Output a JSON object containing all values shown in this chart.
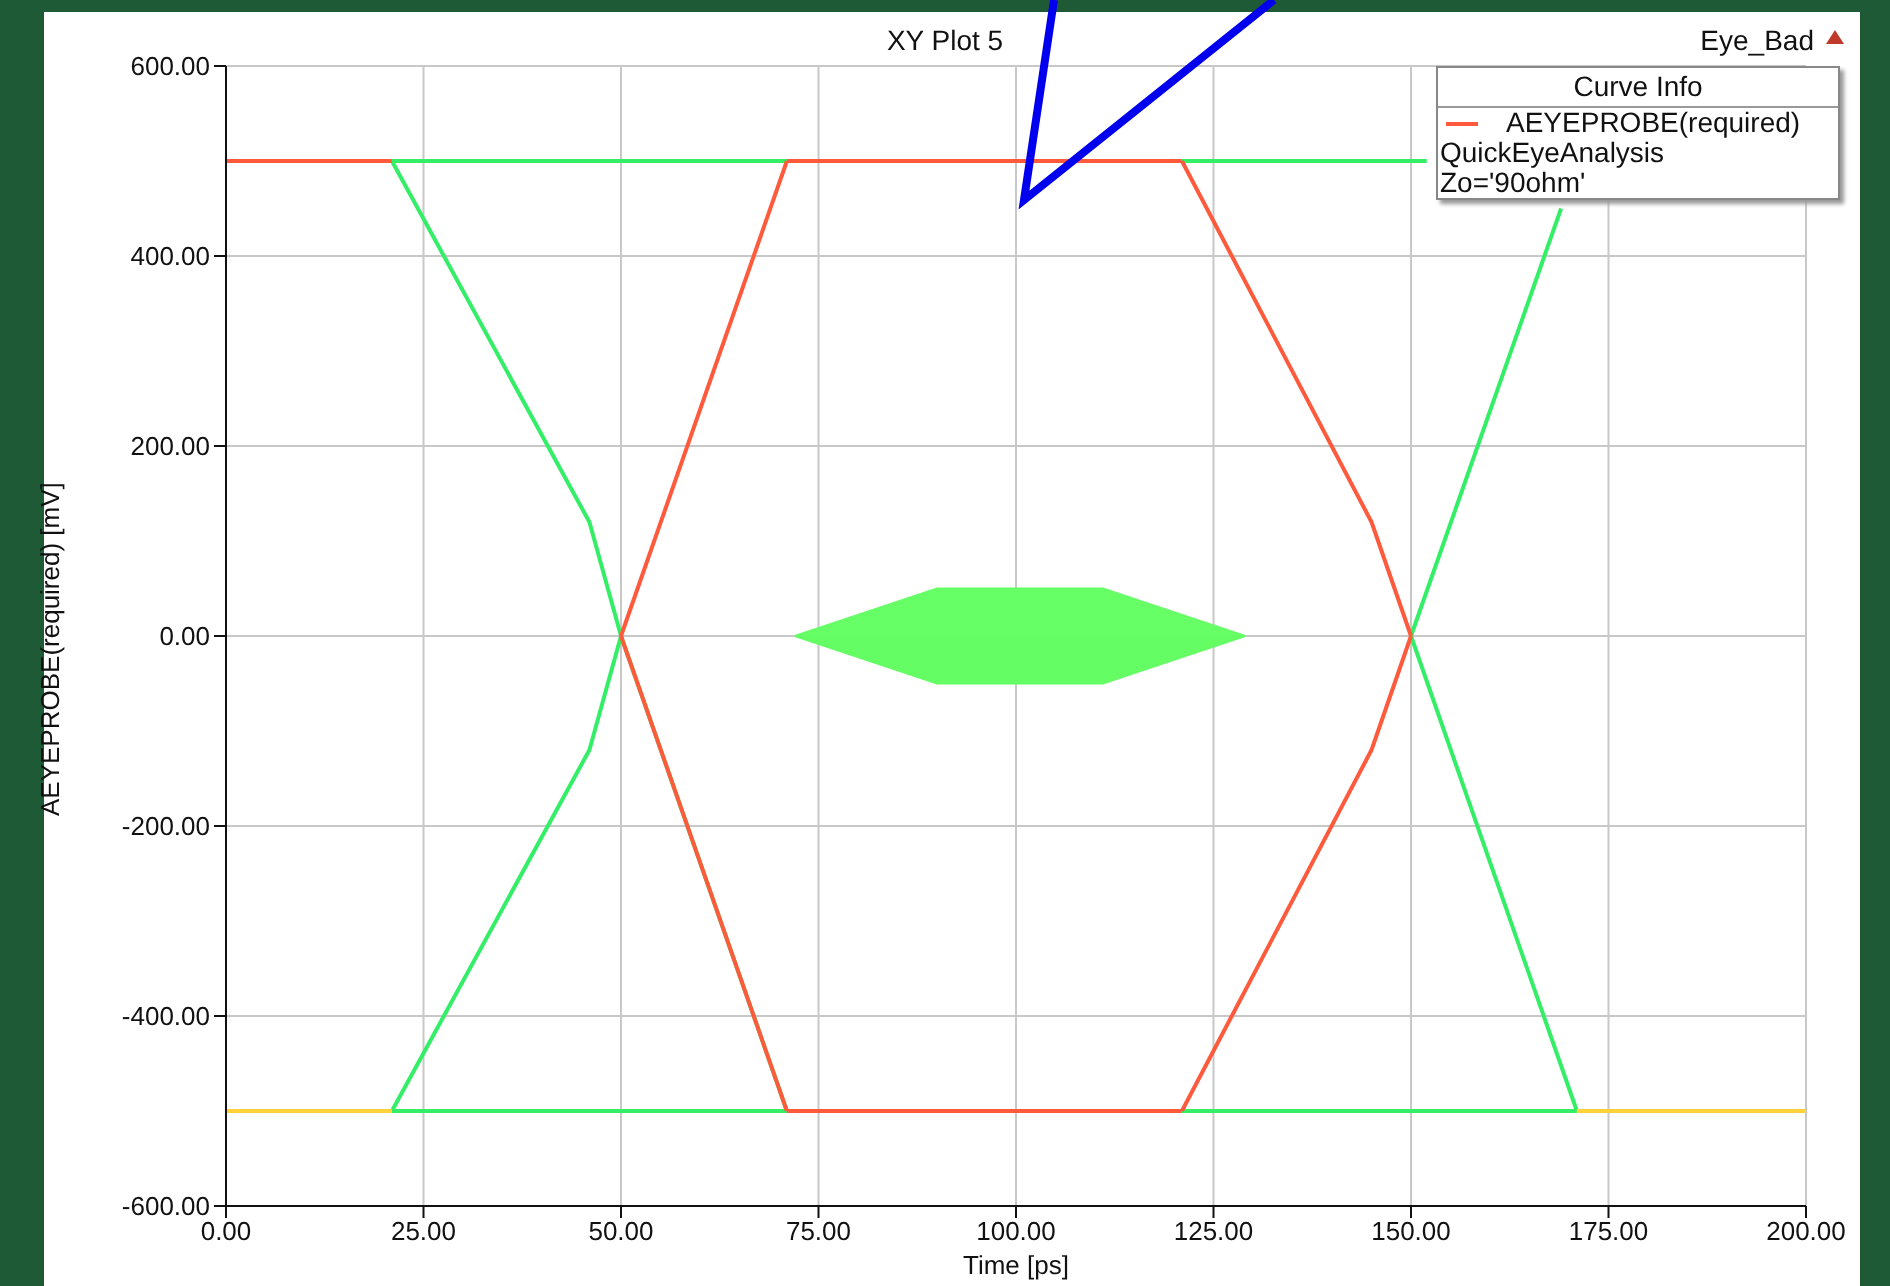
{
  "chart_data": {
    "type": "line",
    "title": "XY Plot 5",
    "xlabel": "Time [ps]",
    "ylabel": "AEYEPROBE(required) [mV]",
    "legend_title": "Curve Info",
    "annotations": [
      "Eye_Bad",
      "QuickEyeAnalysis",
      "Zo='90ohm'"
    ],
    "series": [
      {
        "color": "#33ee66",
        "x": [
          21,
          71
        ],
        "values": [
          500,
          500
        ]
      },
      {
        "color": "#33ee66",
        "x": [
          21,
          46,
          50,
          71
        ],
        "values": [
          500,
          120,
          0,
          -500
        ]
      },
      {
        "color": "#33ee66",
        "x": [
          21,
          71
        ],
        "values": [
          -500,
          -500
        ]
      },
      {
        "color": "#33ee66",
        "x": [
          21,
          46,
          50
        ],
        "values": [
          -500,
          -120,
          0
        ]
      },
      {
        "color": "#33ee66",
        "x": [
          121,
          152
        ],
        "values": [
          500,
          500
        ]
      },
      {
        "color": "#33ee66",
        "x": [
          150,
          171
        ],
        "values": [
          0,
          -500
        ]
      },
      {
        "color": "#33ee66",
        "x": [
          121,
          171
        ],
        "values": [
          -500,
          -500
        ]
      },
      {
        "color": "#33ee66",
        "x": [
          150,
          169
        ],
        "values": [
          0,
          450
        ]
      },
      {
        "name": "AEYEPROBE(required)",
        "color": "#ff5a3c",
        "x": [
          0,
          21
        ],
        "values": [
          500,
          500
        ]
      },
      {
        "color": "#ff5a3c",
        "x": [
          50,
          71
        ],
        "values": [
          0,
          500
        ]
      },
      {
        "color": "#ff5a3c",
        "x": [
          71,
          121
        ],
        "values": [
          500,
          500
        ]
      },
      {
        "color": "#ff5a3c",
        "x": [
          121,
          145,
          150
        ],
        "values": [
          500,
          120,
          0
        ]
      },
      {
        "color": "#ff5a3c",
        "x": [
          50,
          71
        ],
        "values": [
          0,
          -500
        ]
      },
      {
        "color": "#ff5a3c",
        "x": [
          71,
          121
        ],
        "values": [
          -500,
          -500
        ]
      },
      {
        "color": "#ff5a3c",
        "x": [
          121,
          145,
          150
        ],
        "values": [
          -500,
          -120,
          0
        ]
      },
      {
        "color": "#ffd23c",
        "x": [
          0,
          21
        ],
        "values": [
          -500,
          -500
        ]
      },
      {
        "color": "#ffd23c",
        "x": [
          171,
          200
        ],
        "values": [
          -500,
          -500
        ]
      },
      {
        "type": "area",
        "color": "#66ff66",
        "x": [
          72,
          90,
          111,
          129
        ],
        "values": [
          0,
          50,
          50,
          0
        ]
      },
      {
        "type": "area",
        "color": "#64fd64",
        "x": [
          72,
          90,
          111,
          129
        ],
        "values": [
          0,
          -50,
          -50,
          0
        ]
      }
    ],
    "xlim": [
      0,
      200
    ],
    "xticks": [
      {
        "value": 0,
        "label": "0.00"
      },
      {
        "value": 25,
        "label": "25.00"
      },
      {
        "value": 50,
        "label": "50.00"
      },
      {
        "value": 75,
        "label": "75.00"
      },
      {
        "value": 100,
        "label": "100.00"
      },
      {
        "value": 125,
        "label": "125.00"
      },
      {
        "value": 150,
        "label": "150.00"
      },
      {
        "value": 175,
        "label": "175.00"
      },
      {
        "value": 200,
        "label": "200.00"
      }
    ],
    "ylim": [
      -600,
      600
    ],
    "yticks": [
      {
        "value": -600,
        "label": "-600.00"
      },
      {
        "value": -400,
        "label": "-400.00"
      },
      {
        "value": -200,
        "label": "-200.00"
      },
      {
        "value": 0,
        "label": "0.00"
      },
      {
        "value": 200,
        "label": "200.00"
      },
      {
        "value": 400,
        "label": "400.00"
      },
      {
        "value": 600,
        "label": "600.00"
      }
    ],
    "grid": true,
    "legend": "top right",
    "marker": "none",
    "line_style": "solid"
  }
}
